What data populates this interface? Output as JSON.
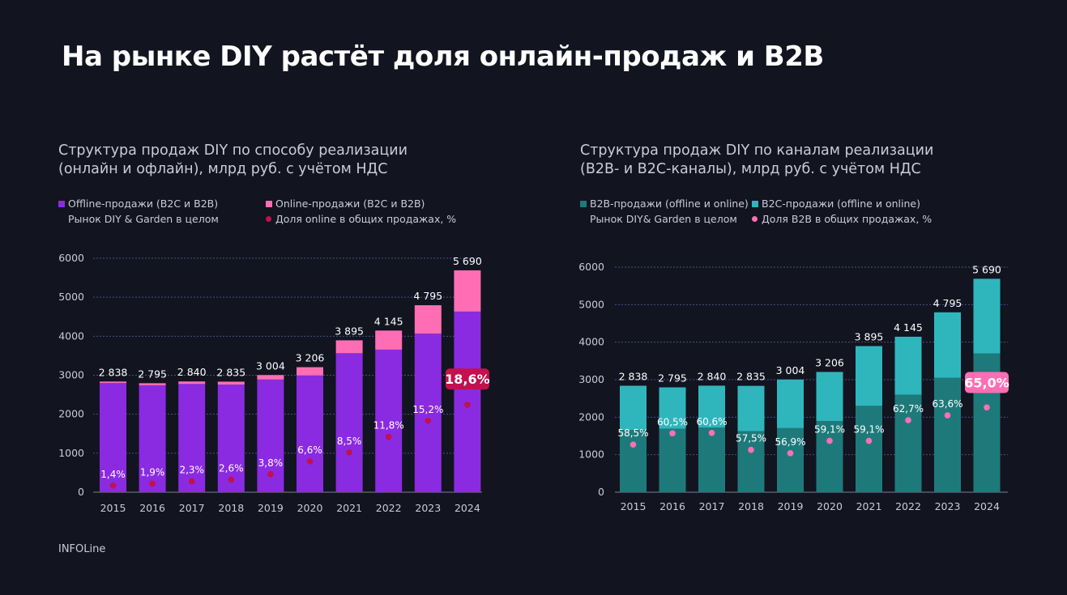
{
  "page_title": "На рынке DIY растёт доля онлайн-продаж и B2B",
  "source": "INFOLine",
  "chart_data": [
    {
      "type": "bar",
      "stacked": true,
      "title_lines": [
        "Структура продаж DIY по способу реализации",
        "(онлайн и офлайн), млрд руб. с учётом НДС"
      ],
      "legend": [
        {
          "label": "Offline-продажи (B2C и B2B)",
          "kind": "bar",
          "color": "#8a2be2"
        },
        {
          "label": "Online-продажи (B2C и B2B)",
          "kind": "bar",
          "color": "#ff6eb4"
        },
        {
          "label": "Рынок DIY & Garden в целом",
          "kind": "none",
          "color": ""
        },
        {
          "label": "Доля online в общих продажах, %",
          "kind": "dot",
          "color": "#c2114c"
        }
      ],
      "categories": [
        "2015",
        "2016",
        "2017",
        "2018",
        "2019",
        "2020",
        "2021",
        "2022",
        "2023",
        "2024"
      ],
      "ylim": [
        0,
        6000
      ],
      "yticks": [
        "0",
        "1000",
        "2000",
        "3000",
        "4000",
        "5000",
        "6000"
      ],
      "yticks_values": [
        0,
        1000,
        2000,
        3000,
        4000,
        5000,
        6000
      ],
      "series": [
        {
          "name": "Offline-продажи (B2C и B2B)",
          "color": "#8a2be2",
          "values": [
            2798,
            2742,
            2775,
            2761,
            2890,
            2994,
            3564,
            3656,
            4066,
            4632
          ]
        },
        {
          "name": "Online-продажи (B2C и B2B)",
          "color": "#ff6eb4",
          "values": [
            40,
            53,
            65,
            74,
            114,
            212,
            331,
            489,
            729,
            1058
          ]
        }
      ],
      "totals": [
        2838,
        2795,
        2840,
        2835,
        3004,
        3206,
        3895,
        4145,
        4795,
        5690
      ],
      "total_labels": [
        "2 838",
        "2 795",
        "2 840",
        "2 835",
        "3 004",
        "3 206",
        "3 895",
        "4 145",
        "4 795",
        "5 690"
      ],
      "share_name": "Доля online в общих продажах, %",
      "share_labels": [
        "1,4%",
        "1,9%",
        "2,3%",
        "2,6%",
        "3,8%",
        "6,6%",
        "8,5%",
        "11,8%",
        "15,2%",
        "18,6%"
      ],
      "share_positions": [
        170,
        220,
        280,
        320,
        460,
        790,
        1020,
        1420,
        1830,
        2240
      ],
      "dot_color": "#c2114c",
      "highlight_color": "#c2114c",
      "bar_color": "#8a2be2"
    },
    {
      "type": "bar",
      "stacked": true,
      "title_lines": [
        "Структура продаж DIY по каналам реализации",
        "(B2B- и B2C-каналы), млрд руб. с учётом НДС"
      ],
      "legend": [
        {
          "label": "B2B-продажи (offline и online)",
          "kind": "bar",
          "color": "#1e7a7a"
        },
        {
          "label": "B2C-продажи (offline и online)",
          "kind": "bar",
          "color": "#2fb6bd"
        },
        {
          "label": "Рынок DIY& Garden в целом",
          "kind": "none",
          "color": ""
        },
        {
          "label": "Доля B2B в общих продажах, %",
          "kind": "dot",
          "color": "#ff6eb4"
        }
      ],
      "categories": [
        "2015",
        "2016",
        "2017",
        "2018",
        "2019",
        "2020",
        "2021",
        "2022",
        "2023",
        "2024"
      ],
      "ylim": [
        0,
        6000
      ],
      "yticks": [
        "0",
        "1000",
        "2000",
        "3000",
        "4000",
        "5000",
        "6000"
      ],
      "yticks_values": [
        0,
        1000,
        2000,
        3000,
        4000,
        5000,
        6000
      ],
      "series": [
        {
          "name": "B2B-продажи (offline и online)",
          "color": "#1e7a7a",
          "values": [
            1660,
            1691,
            1721,
            1630,
            1709,
            1895,
            2302,
            2599,
            3050,
            3699
          ]
        },
        {
          "name": "B2C-продажи (offline и online)",
          "color": "#2fb6bd",
          "values": [
            1178,
            1104,
            1119,
            1205,
            1295,
            1311,
            1593,
            1546,
            1745,
            1991
          ]
        }
      ],
      "totals": [
        2838,
        2795,
        2840,
        2835,
        3004,
        3206,
        3895,
        4145,
        4795,
        5690
      ],
      "total_labels": [
        "2 838",
        "2 795",
        "2 840",
        "2 835",
        "3 004",
        "3 206",
        "3 895",
        "4 145",
        "4 795",
        "5 690"
      ],
      "share_name": "Доля B2B в общих продажах, %",
      "share_labels": [
        "58,5%",
        "60,5%",
        "60,6%",
        "57,5%",
        "56,9%",
        "59,1%",
        "59,1%",
        "62,7%",
        "63,6%",
        "65,0%"
      ],
      "share_positions": [
        1270,
        1570,
        1580,
        1130,
        1040,
        1370,
        1370,
        1920,
        2050,
        2260
      ],
      "dot_color": "#ff6eb4",
      "highlight_color": "#ff6eb4",
      "bar_color": "#1e7a7a"
    }
  ]
}
